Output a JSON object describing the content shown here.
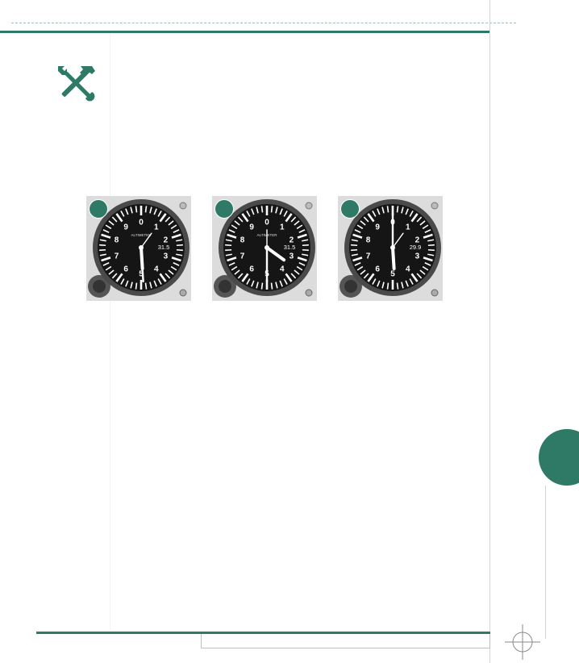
{
  "page": {
    "accent_color": "#2e7a66",
    "icon": "tools-icon"
  },
  "gauges": [
    {
      "title": "ALTIMETER",
      "setting_window": "31.5",
      "hand_100ft_value": 490,
      "hand_1000ft_value": 4900,
      "hand_10000ft_value": 10000
    },
    {
      "title": "ALTIMETER",
      "setting_window": "31.5",
      "hand_100ft_value": 500,
      "hand_1000ft_value": 3500,
      "hand_10000ft_value": 0
    },
    {
      "title": "",
      "setting_window": "29.9",
      "hand_100ft_value": 0,
      "hand_1000ft_value": 4900,
      "hand_10000ft_value": 10000
    }
  ]
}
